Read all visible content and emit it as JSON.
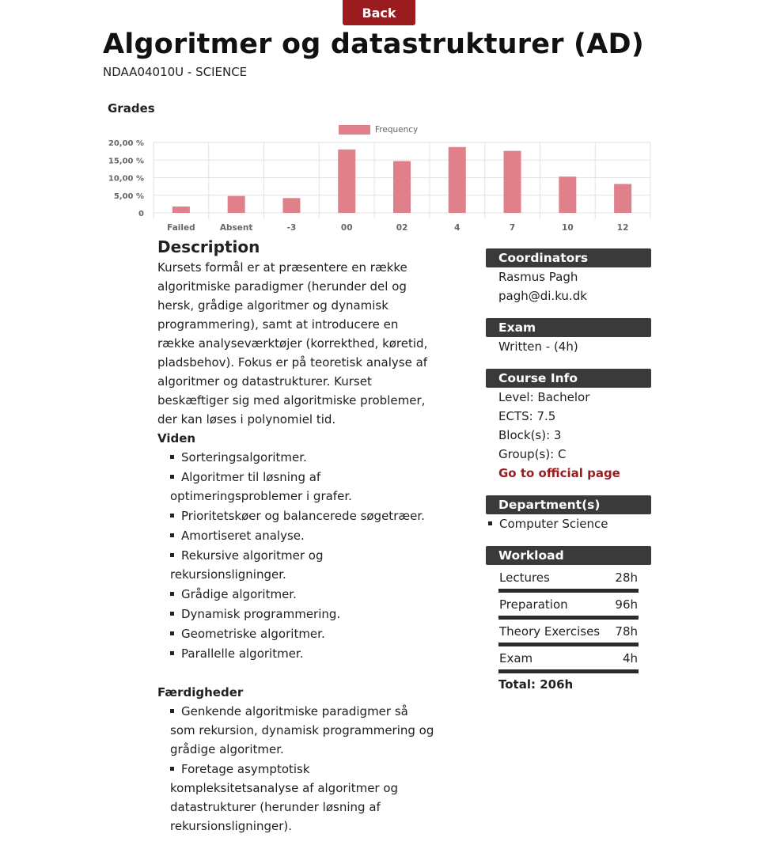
{
  "nav": {
    "back_label": "Back"
  },
  "course": {
    "title": "Algoritmer og datastrukturer (AD)",
    "code_line": "NDAA04010U - SCIENCE"
  },
  "colors": {
    "accent": "#9b1c1f",
    "bar": "#e0808a",
    "section_header": "#3a3a3a"
  },
  "chart_data": {
    "type": "bar",
    "title": "Grades",
    "categories": [
      "Failed",
      "Absent",
      "-3",
      "00",
      "02",
      "4",
      "7",
      "10",
      "12"
    ],
    "series": [
      {
        "name": "Frequency",
        "values": [
          1.8,
          4.8,
          4.2,
          18.0,
          14.7,
          18.7,
          17.6,
          10.3,
          8.2
        ]
      }
    ],
    "y_ticks": [
      "0",
      "5,00 %",
      "10,00 %",
      "15,00 %",
      "20,00 %"
    ],
    "ylim": [
      0,
      20
    ],
    "legend_position": "top-center",
    "grid": true
  },
  "description": {
    "heading": "Description",
    "text": "Kursets formål er at præsentere en række algoritmiske paradigmer (herunder del og hersk, grådige algoritmer og dynamisk programmering), samt at introducere en række analyseværktøjer (korrekthed, køretid, pladsbehov). Fokus er på teoretisk analyse af algoritmer og datastrukturer. Kurset beskæftiger sig med algoritmiske problemer, der kan løses i polynomiel tid.",
    "viden_heading": "Viden",
    "viden": [
      "Sorteringsalgoritmer.",
      "Algoritmer til løsning af optimeringsproblemer i grafer.",
      "Prioritetskøer og balancerede søgetræer.",
      "Amortiseret analyse.",
      "Rekursive algoritmer og rekursionsligninger.",
      "Grådige algoritmer.",
      "Dynamisk programmering.",
      "Geometriske algoritmer.",
      "Parallelle algoritmer."
    ],
    "faerdigheder_heading": "Færdigheder",
    "faerdigheder": [
      "Genkende algoritmiske paradigmer så som rekursion, dynamisk programmering og grådige algoritmer.",
      "Foretage asymptotisk kompleksitetsanalyse af algoritmer og datastrukturer (herunder løsning af rekursionsligninger)."
    ]
  },
  "sidebar": {
    "coordinators": {
      "heading": "Coordinators",
      "name": "Rasmus Pagh",
      "email": "pagh@di.ku.dk"
    },
    "exam": {
      "heading": "Exam",
      "text": "Written - (4h)"
    },
    "course_info": {
      "heading": "Course Info",
      "level": "Level: Bachelor",
      "ects": "ECTS: 7.5",
      "blocks": "Block(s): 3",
      "groups": "Group(s): C",
      "official_link": "Go to official page"
    },
    "departments": {
      "heading": "Department(s)",
      "items": [
        "Computer Science"
      ]
    },
    "workload": {
      "heading": "Workload",
      "rows": [
        {
          "label": "Lectures",
          "hours": "28h"
        },
        {
          "label": "Preparation",
          "hours": "96h"
        },
        {
          "label": "Theory Exercises",
          "hours": "78h"
        },
        {
          "label": "Exam",
          "hours": "4h"
        }
      ],
      "total": "Total: 206h"
    }
  }
}
